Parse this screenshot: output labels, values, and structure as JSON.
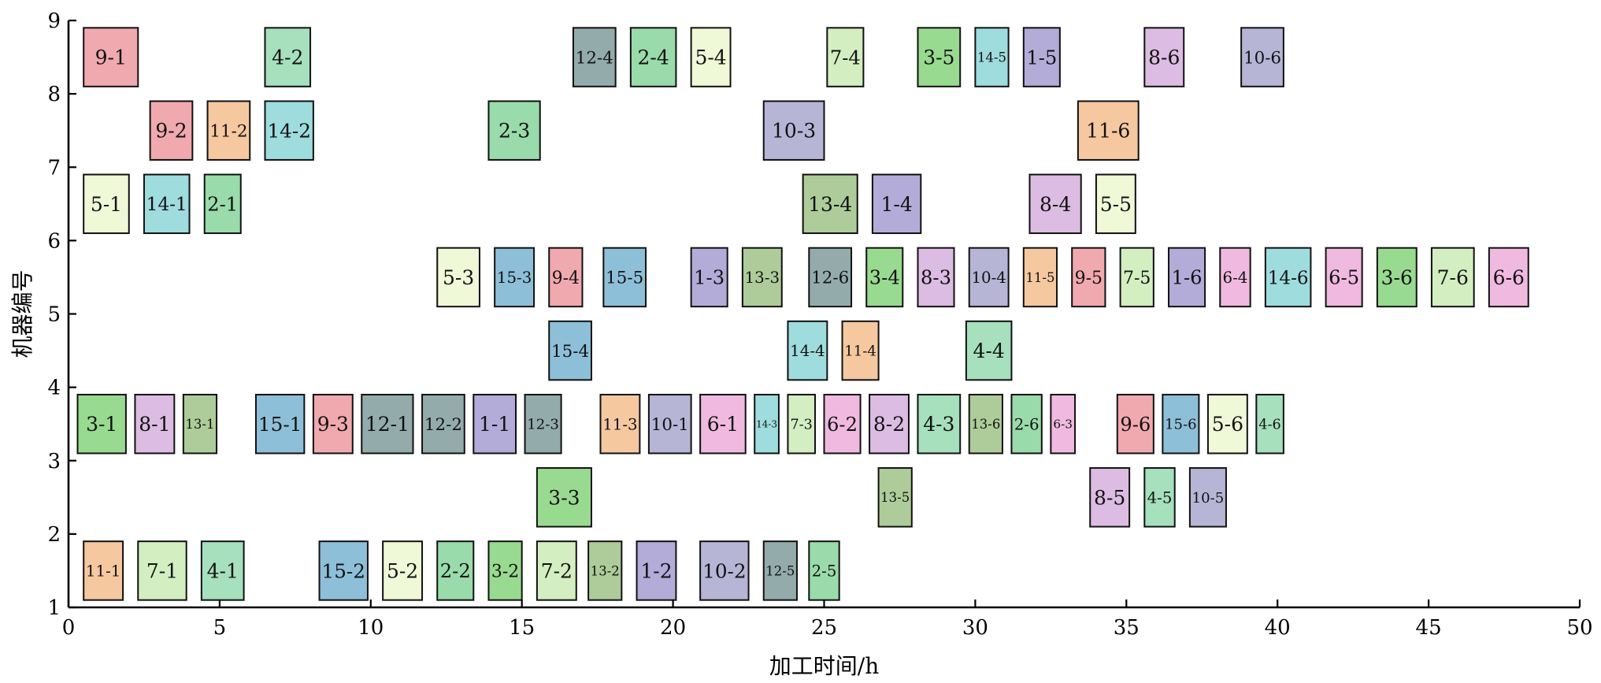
{
  "chart_data": {
    "type": "gantt",
    "xlabel": "加工时间/h",
    "ylabel": "机器编号",
    "xlim": [
      0,
      50
    ],
    "ylim": [
      1,
      9
    ],
    "xticks": [
      0,
      5,
      10,
      15,
      20,
      25,
      30,
      35,
      40,
      45,
      50
    ],
    "yticks": [
      1,
      2,
      3,
      4,
      5,
      6,
      7,
      8,
      9
    ],
    "grid": false,
    "legend": "none",
    "colors": {
      "1": "#b3acd9",
      "2": "#99dbaa",
      "3": "#98da8f",
      "4": "#a6e0bd",
      "5": "#eff8d7",
      "6": "#f0b9df",
      "7": "#d3eec1",
      "8": "#dcbce2",
      "9": "#f0a9ae",
      "10": "#b6b5d6",
      "11": "#f5c8a0",
      "12": "#94abab",
      "13": "#adcc99",
      "14": "#9edcde",
      "15": "#8ebfd9"
    },
    "operations": [
      {
        "label": "11-1",
        "job": 11,
        "machine": 1,
        "start": 0.5,
        "end": 1.8
      },
      {
        "label": "7-1",
        "job": 7,
        "machine": 1,
        "start": 2.3,
        "end": 3.9
      },
      {
        "label": "4-1",
        "job": 4,
        "machine": 1,
        "start": 4.4,
        "end": 5.8
      },
      {
        "label": "15-2",
        "job": 15,
        "machine": 1,
        "start": 8.3,
        "end": 9.9
      },
      {
        "label": "5-2",
        "job": 5,
        "machine": 1,
        "start": 10.4,
        "end": 11.7
      },
      {
        "label": "2-2",
        "job": 2,
        "machine": 1,
        "start": 12.2,
        "end": 13.4
      },
      {
        "label": "3-2",
        "job": 3,
        "machine": 1,
        "start": 13.9,
        "end": 15.0
      },
      {
        "label": "7-2",
        "job": 7,
        "machine": 1,
        "start": 15.5,
        "end": 16.8
      },
      {
        "label": "13-2",
        "job": 13,
        "machine": 1,
        "start": 17.2,
        "end": 18.3
      },
      {
        "label": "1-2",
        "job": 1,
        "machine": 1,
        "start": 18.8,
        "end": 20.1
      },
      {
        "label": "10-2",
        "job": 10,
        "machine": 1,
        "start": 20.9,
        "end": 22.5
      },
      {
        "label": "12-5",
        "job": 12,
        "machine": 1,
        "start": 23.0,
        "end": 24.1
      },
      {
        "label": "2-5",
        "job": 2,
        "machine": 1,
        "start": 24.5,
        "end": 25.5
      },
      {
        "label": "3-3",
        "job": 3,
        "machine": 2,
        "start": 15.5,
        "end": 17.3
      },
      {
        "label": "13-5",
        "job": 13,
        "machine": 2,
        "start": 26.8,
        "end": 27.9
      },
      {
        "label": "8-5",
        "job": 8,
        "machine": 2,
        "start": 33.8,
        "end": 35.1
      },
      {
        "label": "4-5",
        "job": 4,
        "machine": 2,
        "start": 35.6,
        "end": 36.6
      },
      {
        "label": "10-5",
        "job": 10,
        "machine": 2,
        "start": 37.1,
        "end": 38.3
      },
      {
        "label": "3-1",
        "job": 3,
        "machine": 3,
        "start": 0.3,
        "end": 1.9
      },
      {
        "label": "8-1",
        "job": 8,
        "machine": 3,
        "start": 2.2,
        "end": 3.5
      },
      {
        "label": "13-1",
        "job": 13,
        "machine": 3,
        "start": 3.8,
        "end": 4.9
      },
      {
        "label": "15-1",
        "job": 15,
        "machine": 3,
        "start": 6.2,
        "end": 7.8
      },
      {
        "label": "9-3",
        "job": 9,
        "machine": 3,
        "start": 8.1,
        "end": 9.4
      },
      {
        "label": "12-1",
        "job": 12,
        "machine": 3,
        "start": 9.7,
        "end": 11.4
      },
      {
        "label": "12-2",
        "job": 12,
        "machine": 3,
        "start": 11.7,
        "end": 13.1
      },
      {
        "label": "1-1",
        "job": 1,
        "machine": 3,
        "start": 13.4,
        "end": 14.8
      },
      {
        "label": "12-3",
        "job": 12,
        "machine": 3,
        "start": 15.1,
        "end": 16.3
      },
      {
        "label": "11-3",
        "job": 11,
        "machine": 3,
        "start": 17.6,
        "end": 18.9
      },
      {
        "label": "10-1",
        "job": 10,
        "machine": 3,
        "start": 19.2,
        "end": 20.6
      },
      {
        "label": "6-1",
        "job": 6,
        "machine": 3,
        "start": 20.9,
        "end": 22.4
      },
      {
        "label": "14-3",
        "job": 14,
        "machine": 3,
        "start": 22.7,
        "end": 23.5
      },
      {
        "label": "7-3",
        "job": 7,
        "machine": 3,
        "start": 23.8,
        "end": 24.7
      },
      {
        "label": "6-2",
        "job": 6,
        "machine": 3,
        "start": 25.0,
        "end": 26.2
      },
      {
        "label": "8-2",
        "job": 8,
        "machine": 3,
        "start": 26.5,
        "end": 27.8
      },
      {
        "label": "4-3",
        "job": 4,
        "machine": 3,
        "start": 28.1,
        "end": 29.5
      },
      {
        "label": "13-6",
        "job": 13,
        "machine": 3,
        "start": 29.8,
        "end": 30.9
      },
      {
        "label": "2-6",
        "job": 2,
        "machine": 3,
        "start": 31.2,
        "end": 32.2
      },
      {
        "label": "6-3",
        "job": 6,
        "machine": 3,
        "start": 32.5,
        "end": 33.3
      },
      {
        "label": "9-6",
        "job": 9,
        "machine": 3,
        "start": 34.7,
        "end": 35.9
      },
      {
        "label": "15-6",
        "job": 15,
        "machine": 3,
        "start": 36.2,
        "end": 37.4
      },
      {
        "label": "5-6",
        "job": 5,
        "machine": 3,
        "start": 37.7,
        "end": 39.0
      },
      {
        "label": "4-6",
        "job": 4,
        "machine": 3,
        "start": 39.3,
        "end": 40.2
      },
      {
        "label": "15-4",
        "job": 15,
        "machine": 4,
        "start": 15.9,
        "end": 17.3
      },
      {
        "label": "14-4",
        "job": 14,
        "machine": 4,
        "start": 23.8,
        "end": 25.1
      },
      {
        "label": "11-4",
        "job": 11,
        "machine": 4,
        "start": 25.6,
        "end": 26.8
      },
      {
        "label": "4-4",
        "job": 4,
        "machine": 4,
        "start": 29.7,
        "end": 31.2
      },
      {
        "label": "5-3",
        "job": 5,
        "machine": 5,
        "start": 12.2,
        "end": 13.6
      },
      {
        "label": "15-3",
        "job": 15,
        "machine": 5,
        "start": 14.1,
        "end": 15.4
      },
      {
        "label": "9-4",
        "job": 9,
        "machine": 5,
        "start": 15.9,
        "end": 17.0
      },
      {
        "label": "15-5",
        "job": 15,
        "machine": 5,
        "start": 17.7,
        "end": 19.1
      },
      {
        "label": "1-3",
        "job": 1,
        "machine": 5,
        "start": 20.6,
        "end": 21.8
      },
      {
        "label": "13-3",
        "job": 13,
        "machine": 5,
        "start": 22.3,
        "end": 23.6
      },
      {
        "label": "12-6",
        "job": 12,
        "machine": 5,
        "start": 24.5,
        "end": 25.9
      },
      {
        "label": "3-4",
        "job": 3,
        "machine": 5,
        "start": 26.4,
        "end": 27.6
      },
      {
        "label": "8-3",
        "job": 8,
        "machine": 5,
        "start": 28.1,
        "end": 29.3
      },
      {
        "label": "10-4",
        "job": 10,
        "machine": 5,
        "start": 29.8,
        "end": 31.1
      },
      {
        "label": "11-5",
        "job": 11,
        "machine": 5,
        "start": 31.6,
        "end": 32.7
      },
      {
        "label": "9-5",
        "job": 9,
        "machine": 5,
        "start": 33.2,
        "end": 34.3
      },
      {
        "label": "7-5",
        "job": 7,
        "machine": 5,
        "start": 34.8,
        "end": 35.9
      },
      {
        "label": "1-6",
        "job": 1,
        "machine": 5,
        "start": 36.4,
        "end": 37.6
      },
      {
        "label": "6-4",
        "job": 6,
        "machine": 5,
        "start": 38.1,
        "end": 39.1
      },
      {
        "label": "14-6",
        "job": 14,
        "machine": 5,
        "start": 39.6,
        "end": 41.1
      },
      {
        "label": "6-5",
        "job": 6,
        "machine": 5,
        "start": 41.6,
        "end": 42.8
      },
      {
        "label": "3-6",
        "job": 3,
        "machine": 5,
        "start": 43.3,
        "end": 44.6
      },
      {
        "label": "7-6",
        "job": 7,
        "machine": 5,
        "start": 45.1,
        "end": 46.5
      },
      {
        "label": "6-6",
        "job": 6,
        "machine": 5,
        "start": 47.0,
        "end": 48.3
      },
      {
        "label": "5-1",
        "job": 5,
        "machine": 6,
        "start": 0.5,
        "end": 2.0
      },
      {
        "label": "14-1",
        "job": 14,
        "machine": 6,
        "start": 2.5,
        "end": 4.0
      },
      {
        "label": "2-1",
        "job": 2,
        "machine": 6,
        "start": 4.5,
        "end": 5.7
      },
      {
        "label": "13-4",
        "job": 13,
        "machine": 6,
        "start": 24.3,
        "end": 26.1
      },
      {
        "label": "1-4",
        "job": 1,
        "machine": 6,
        "start": 26.6,
        "end": 28.2
      },
      {
        "label": "8-4",
        "job": 8,
        "machine": 6,
        "start": 31.8,
        "end": 33.5
      },
      {
        "label": "5-5",
        "job": 5,
        "machine": 6,
        "start": 34.0,
        "end": 35.3
      },
      {
        "label": "9-2",
        "job": 9,
        "machine": 7,
        "start": 2.7,
        "end": 4.1
      },
      {
        "label": "11-2",
        "job": 11,
        "machine": 7,
        "start": 4.6,
        "end": 6.0
      },
      {
        "label": "14-2",
        "job": 14,
        "machine": 7,
        "start": 6.5,
        "end": 8.1
      },
      {
        "label": "2-3",
        "job": 2,
        "machine": 7,
        "start": 13.9,
        "end": 15.6
      },
      {
        "label": "10-3",
        "job": 10,
        "machine": 7,
        "start": 23.0,
        "end": 25.0
      },
      {
        "label": "11-6",
        "job": 11,
        "machine": 7,
        "start": 33.4,
        "end": 35.4
      },
      {
        "label": "9-1",
        "job": 9,
        "machine": 8,
        "start": 0.5,
        "end": 2.3
      },
      {
        "label": "4-2",
        "job": 4,
        "machine": 8,
        "start": 6.5,
        "end": 8.0
      },
      {
        "label": "12-4",
        "job": 12,
        "machine": 8,
        "start": 16.7,
        "end": 18.1
      },
      {
        "label": "2-4",
        "job": 2,
        "machine": 8,
        "start": 18.6,
        "end": 20.1
      },
      {
        "label": "5-4",
        "job": 5,
        "machine": 8,
        "start": 20.6,
        "end": 21.9
      },
      {
        "label": "7-4",
        "job": 7,
        "machine": 8,
        "start": 25.1,
        "end": 26.3
      },
      {
        "label": "3-5",
        "job": 3,
        "machine": 8,
        "start": 28.1,
        "end": 29.5
      },
      {
        "label": "14-5",
        "job": 14,
        "machine": 8,
        "start": 30.0,
        "end": 31.1
      },
      {
        "label": "1-5",
        "job": 1,
        "machine": 8,
        "start": 31.6,
        "end": 32.8
      },
      {
        "label": "8-6",
        "job": 8,
        "machine": 8,
        "start": 35.6,
        "end": 36.9
      },
      {
        "label": "10-6",
        "job": 10,
        "machine": 8,
        "start": 38.8,
        "end": 40.2
      }
    ]
  }
}
